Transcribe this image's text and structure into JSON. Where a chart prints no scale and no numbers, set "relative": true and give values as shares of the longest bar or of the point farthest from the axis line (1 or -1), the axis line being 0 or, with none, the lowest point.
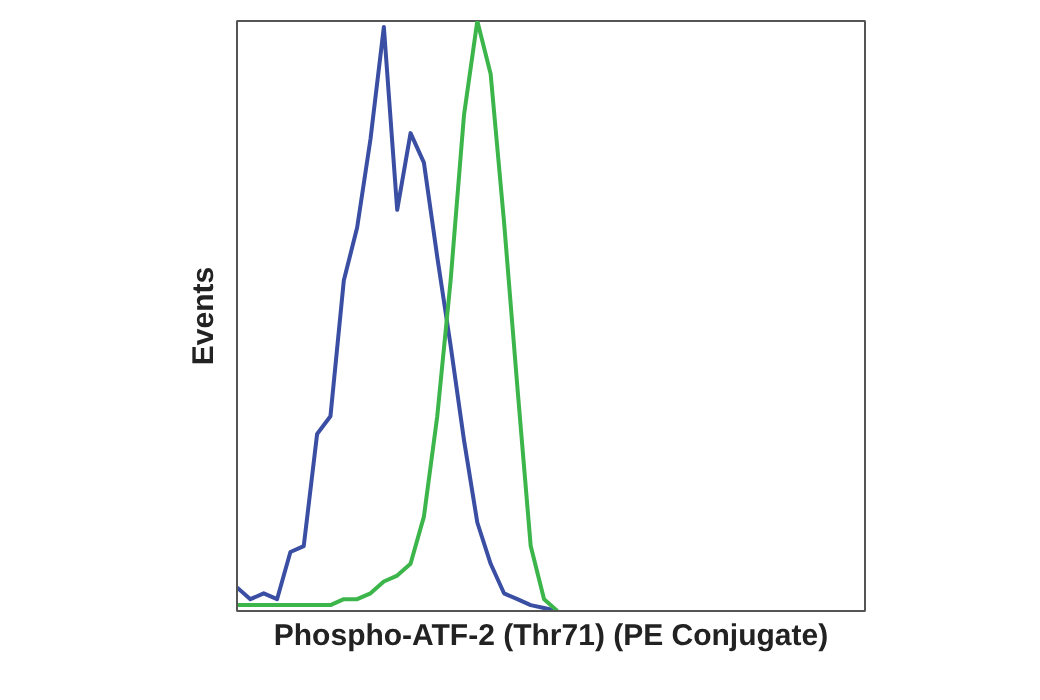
{
  "chart_data": {
    "type": "line",
    "relative": true,
    "xlabel": "Phospho-ATF-2 (Thr71) (PE Conjugate)",
    "ylabel": "Events",
    "marker": "none",
    "line_style": "solid",
    "categories": [
      null,
      null,
      null,
      null,
      null,
      null,
      null,
      null,
      null,
      null,
      null,
      null,
      null,
      null,
      null,
      null,
      null,
      null,
      null,
      null,
      null,
      null,
      null,
      null,
      null
    ],
    "series": [
      {
        "color": "#3a4fa3",
        "values": [
          0.04,
          0.02,
          0.03,
          0.02,
          0.1,
          0.11,
          0.3,
          0.33,
          0.56,
          0.65,
          0.8,
          0.99,
          0.68,
          0.81,
          0.76,
          0.6,
          0.45,
          0.29,
          0.15,
          0.08,
          0.03,
          0.02,
          0.01,
          0.005,
          0
        ]
      },
      {
        "color": "#3cb54a",
        "values": [
          0.01,
          0.01,
          0.01,
          0.01,
          0.01,
          0.01,
          0.01,
          0.01,
          0.02,
          0.02,
          0.03,
          0.05,
          0.06,
          0.08,
          0.16,
          0.33,
          0.56,
          0.84,
          1,
          0.91,
          0.66,
          0.38,
          0.11,
          0.02,
          0
        ]
      }
    ]
  }
}
